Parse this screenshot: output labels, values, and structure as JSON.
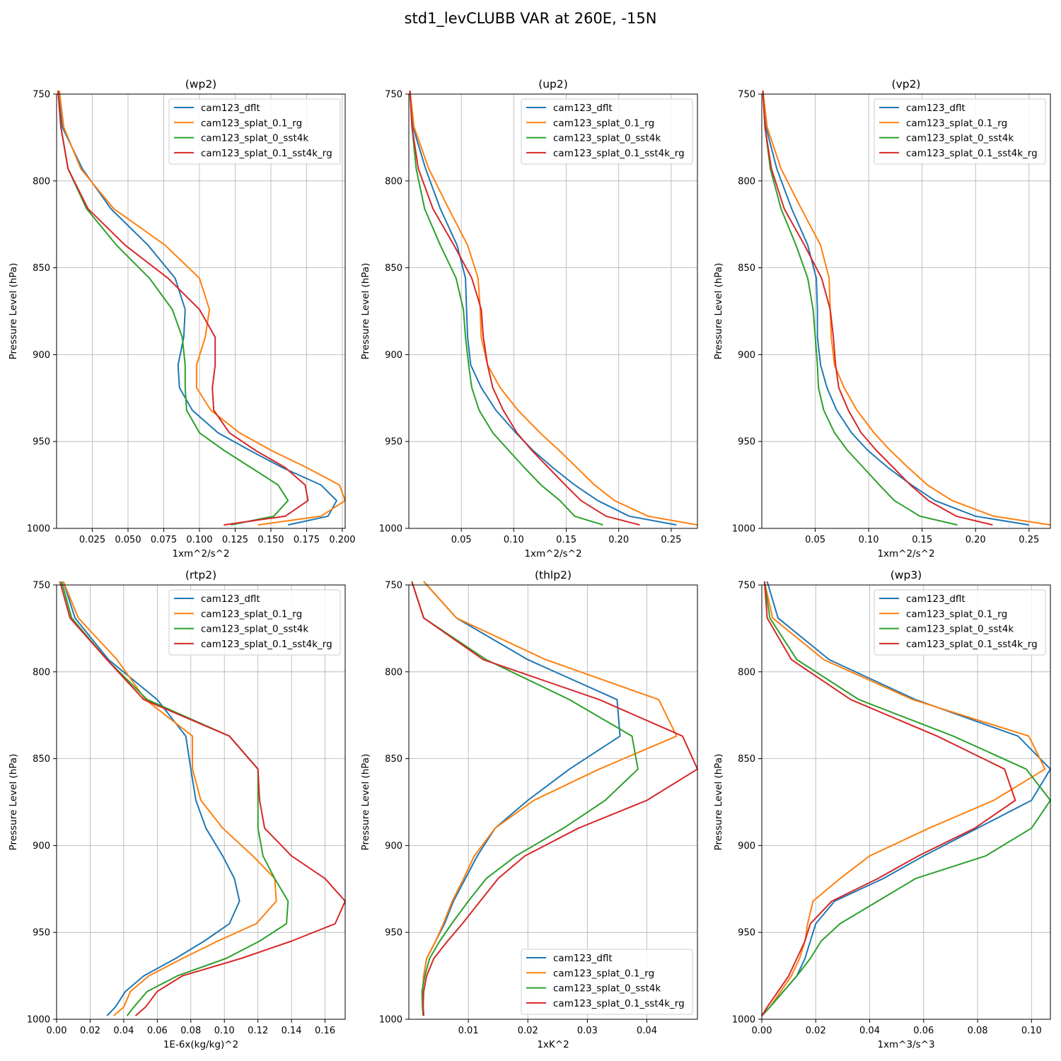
{
  "figure": {
    "title": "std1_levCLUBB VAR at 260E, -15N"
  },
  "colors": {
    "cam123_dflt": "#1f77b4",
    "cam123_splat_0.1_rg": "#ff7f0e",
    "cam123_splat_0_sst4k": "#2ca02c",
    "cam123_splat_0.1_sst4k_rg": "#d62728"
  },
  "chart_data": [
    {
      "type": "line",
      "title": "(wp2)",
      "xlabel": "1xm^2/s^2",
      "ylabel": "Pressure Level (hPa)",
      "xlim": [
        0.0,
        0.202
      ],
      "ylim": [
        1000,
        750
      ],
      "y_inverted": true,
      "xticks": [
        "0.025",
        "0.050",
        "0.075",
        "0.100",
        "0.125",
        "0.150",
        "0.175",
        "0.200"
      ],
      "yticks": [
        "750",
        "800",
        "850",
        "900",
        "950",
        "1000"
      ],
      "grid": true,
      "legend_position": "top-right",
      "pressure_levels": [
        748,
        769,
        793,
        816,
        837,
        856,
        874,
        890,
        906,
        919,
        932,
        945,
        955,
        965,
        975,
        984,
        993,
        998
      ],
      "series": [
        {
          "name": "cam123_dflt",
          "values": [
            0.001,
            0.004,
            0.018,
            0.038,
            0.064,
            0.083,
            0.09,
            0.089,
            0.085,
            0.086,
            0.095,
            0.113,
            0.135,
            0.158,
            0.185,
            0.196,
            0.19,
            0.162
          ]
        },
        {
          "name": "cam123_splat_0.1_rg",
          "values": [
            0.002,
            0.005,
            0.017,
            0.04,
            0.076,
            0.1,
            0.107,
            0.104,
            0.098,
            0.098,
            0.108,
            0.128,
            0.15,
            0.175,
            0.198,
            0.202,
            0.185,
            0.141
          ]
        },
        {
          "name": "cam123_splat_0_sst4k",
          "values": [
            0.001,
            0.003,
            0.008,
            0.021,
            0.042,
            0.065,
            0.081,
            0.088,
            0.09,
            0.09,
            0.091,
            0.1,
            0.117,
            0.136,
            0.155,
            0.162,
            0.152,
            0.122
          ]
        },
        {
          "name": "cam123_splat_0.1_sst4k_rg",
          "values": [
            0.001,
            0.003,
            0.008,
            0.022,
            0.048,
            0.078,
            0.1,
            0.111,
            0.111,
            0.109,
            0.11,
            0.121,
            0.139,
            0.16,
            0.174,
            0.176,
            0.16,
            0.117
          ]
        }
      ]
    },
    {
      "type": "line",
      "title": "(up2)",
      "xlabel": "1xm^2/s^2",
      "ylabel": "Pressure Level (hPa)",
      "xlim": [
        0.0,
        0.275
      ],
      "ylim": [
        1000,
        750
      ],
      "y_inverted": true,
      "xticks": [
        "0.05",
        "0.10",
        "0.15",
        "0.20",
        "0.25"
      ],
      "yticks": [
        "750",
        "800",
        "850",
        "900",
        "950",
        "1000"
      ],
      "grid": true,
      "legend_position": "top-right",
      "pressure_levels": [
        748,
        769,
        793,
        816,
        837,
        856,
        874,
        890,
        906,
        919,
        932,
        945,
        955,
        965,
        975,
        984,
        993,
        998
      ],
      "series": [
        {
          "name": "cam123_dflt",
          "values": [
            0.001,
            0.004,
            0.016,
            0.03,
            0.046,
            0.054,
            0.055,
            0.056,
            0.059,
            0.069,
            0.083,
            0.102,
            0.118,
            0.137,
            0.158,
            0.18,
            0.21,
            0.255
          ]
        },
        {
          "name": "cam123_splat_0.1_rg",
          "values": [
            0.001,
            0.005,
            0.019,
            0.038,
            0.056,
            0.066,
            0.068,
            0.069,
            0.075,
            0.087,
            0.104,
            0.125,
            0.143,
            0.16,
            0.177,
            0.196,
            0.228,
            0.275
          ]
        },
        {
          "name": "cam123_splat_0_sst4k",
          "values": [
            0.001,
            0.003,
            0.007,
            0.015,
            0.03,
            0.045,
            0.052,
            0.054,
            0.057,
            0.06,
            0.067,
            0.08,
            0.095,
            0.11,
            0.126,
            0.144,
            0.158,
            0.185
          ]
        },
        {
          "name": "cam123_splat_0.1_sst4k_rg",
          "values": [
            0.001,
            0.003,
            0.009,
            0.023,
            0.043,
            0.06,
            0.069,
            0.071,
            0.075,
            0.08,
            0.09,
            0.103,
            0.117,
            0.133,
            0.149,
            0.164,
            0.188,
            0.22
          ]
        }
      ]
    },
    {
      "type": "line",
      "title": "(vp2)",
      "xlabel": "1xm^2/s^2",
      "ylabel": "Pressure Level (hPa)",
      "xlim": [
        0.0,
        0.27
      ],
      "ylim": [
        1000,
        750
      ],
      "y_inverted": true,
      "xticks": [
        "0.05",
        "0.10",
        "0.15",
        "0.20",
        "0.25"
      ],
      "yticks": [
        "750",
        "800",
        "850",
        "900",
        "950",
        "1000"
      ],
      "grid": true,
      "legend_position": "top-right",
      "pressure_levels": [
        748,
        769,
        793,
        816,
        837,
        856,
        874,
        890,
        906,
        919,
        932,
        945,
        955,
        965,
        975,
        984,
        993,
        998
      ],
      "series": [
        {
          "name": "cam123_dflt",
          "values": [
            0.001,
            0.004,
            0.014,
            0.028,
            0.043,
            0.051,
            0.052,
            0.052,
            0.055,
            0.061,
            0.07,
            0.084,
            0.099,
            0.118,
            0.14,
            0.162,
            0.2,
            0.25
          ]
        },
        {
          "name": "cam123_splat_0.1_rg",
          "values": [
            0.001,
            0.005,
            0.018,
            0.037,
            0.055,
            0.063,
            0.064,
            0.065,
            0.068,
            0.077,
            0.089,
            0.105,
            0.12,
            0.137,
            0.155,
            0.178,
            0.217,
            0.27
          ]
        },
        {
          "name": "cam123_splat_0_sst4k",
          "values": [
            0.001,
            0.003,
            0.008,
            0.018,
            0.032,
            0.043,
            0.048,
            0.05,
            0.052,
            0.053,
            0.058,
            0.068,
            0.08,
            0.095,
            0.11,
            0.124,
            0.148,
            0.183
          ]
        },
        {
          "name": "cam123_splat_0.1_sst4k_rg",
          "values": [
            0.001,
            0.003,
            0.009,
            0.021,
            0.04,
            0.056,
            0.064,
            0.067,
            0.069,
            0.072,
            0.081,
            0.093,
            0.107,
            0.123,
            0.139,
            0.156,
            0.182,
            0.216
          ]
        }
      ]
    },
    {
      "type": "line",
      "title": "(rtp2)",
      "xlabel": "1E-6x(kg/kg)^2",
      "ylabel": "Pressure Level (hPa)",
      "xlim": [
        0.0,
        0.172
      ],
      "ylim": [
        1000,
        750
      ],
      "y_inverted": true,
      "xticks": [
        "0.00",
        "0.02",
        "0.04",
        "0.06",
        "0.08",
        "0.10",
        "0.12",
        "0.14",
        "0.16"
      ],
      "yticks": [
        "750",
        "800",
        "850",
        "900",
        "950",
        "1000"
      ],
      "grid": true,
      "legend_position": "top-right",
      "pressure_levels": [
        748,
        769,
        793,
        816,
        837,
        856,
        874,
        890,
        906,
        919,
        932,
        945,
        955,
        965,
        975,
        984,
        993,
        998
      ],
      "series": [
        {
          "name": "cam123_dflt",
          "values": [
            0.004,
            0.011,
            0.031,
            0.06,
            0.077,
            0.08,
            0.083,
            0.089,
            0.099,
            0.106,
            0.109,
            0.103,
            0.088,
            0.071,
            0.052,
            0.041,
            0.035,
            0.03
          ]
        },
        {
          "name": "cam123_splat_0.1_rg",
          "values": [
            0.004,
            0.013,
            0.036,
            0.053,
            0.081,
            0.081,
            0.086,
            0.099,
            0.117,
            0.13,
            0.131,
            0.119,
            0.096,
            0.075,
            0.055,
            0.044,
            0.04,
            0.034
          ]
        },
        {
          "name": "cam123_splat_0_sst4k",
          "values": [
            0.003,
            0.009,
            0.03,
            0.054,
            0.103,
            0.12,
            0.12,
            0.12,
            0.123,
            0.13,
            0.138,
            0.137,
            0.121,
            0.101,
            0.072,
            0.054,
            0.046,
            0.042
          ]
        },
        {
          "name": "cam123_splat_0.1_sst4k_rg",
          "values": [
            0.002,
            0.008,
            0.03,
            0.052,
            0.103,
            0.12,
            0.121,
            0.124,
            0.14,
            0.16,
            0.172,
            0.166,
            0.14,
            0.11,
            0.075,
            0.06,
            0.053,
            0.047
          ]
        }
      ]
    },
    {
      "type": "line",
      "title": "(thlp2)",
      "xlabel": "1xK^2",
      "ylabel": "Pressure Level (hPa)",
      "xlim": [
        0.0,
        0.0485
      ],
      "ylim": [
        1000,
        750
      ],
      "y_inverted": true,
      "xticks": [
        "0.01",
        "0.02",
        "0.03",
        "0.04"
      ],
      "yticks": [
        "750",
        "800",
        "850",
        "900",
        "950",
        "1000"
      ],
      "grid": true,
      "legend_position": "bottom-right",
      "pressure_levels": [
        748,
        769,
        793,
        816,
        837,
        856,
        874,
        890,
        906,
        919,
        932,
        945,
        955,
        965,
        975,
        984,
        993,
        998
      ],
      "series": [
        {
          "name": "cam123_dflt",
          "values": [
            0.0025,
            0.008,
            0.02,
            0.035,
            0.0355,
            0.027,
            0.02,
            0.0145,
            0.0115,
            0.0095,
            0.0075,
            0.006,
            0.0045,
            0.003,
            0.0025,
            0.0023,
            0.0024,
            0.0025
          ]
        },
        {
          "name": "cam123_splat_0.1_rg",
          "values": [
            0.0025,
            0.008,
            0.023,
            0.042,
            0.045,
            0.032,
            0.021,
            0.0145,
            0.011,
            0.0092,
            0.0073,
            0.0058,
            0.0045,
            0.003,
            0.0025,
            0.0023,
            0.0024,
            0.0025
          ]
        },
        {
          "name": "cam123_splat_0_sst4k",
          "values": [
            0.0005,
            0.0025,
            0.013,
            0.027,
            0.0375,
            0.0385,
            0.033,
            0.026,
            0.018,
            0.013,
            0.01,
            0.0072,
            0.0052,
            0.0035,
            0.0027,
            0.0022,
            0.0023,
            0.0024
          ]
        },
        {
          "name": "cam123_splat_0.1_sst4k_rg",
          "values": [
            0.0005,
            0.0025,
            0.0125,
            0.032,
            0.046,
            0.0485,
            0.04,
            0.0285,
            0.0195,
            0.015,
            0.012,
            0.009,
            0.0065,
            0.0042,
            0.003,
            0.0025,
            0.0024,
            0.0025
          ]
        }
      ]
    },
    {
      "type": "line",
      "title": "(wp3)",
      "xlabel": "1xm^3/s^3",
      "ylabel": "Pressure Level (hPa)",
      "xlim": [
        0.0,
        0.107
      ],
      "ylim": [
        1000,
        750
      ],
      "y_inverted": true,
      "xticks": [
        "0.00",
        "0.02",
        "0.04",
        "0.06",
        "0.08",
        "0.10"
      ],
      "yticks": [
        "750",
        "800",
        "850",
        "900",
        "950",
        "1000"
      ],
      "grid": true,
      "legend_position": "top-right",
      "pressure_levels": [
        748,
        769,
        793,
        816,
        837,
        856,
        874,
        890,
        906,
        919,
        932,
        945,
        955,
        965,
        975,
        984,
        993,
        998
      ],
      "series": [
        {
          "name": "cam123_dflt",
          "values": [
            0.002,
            0.006,
            0.025,
            0.057,
            0.095,
            0.107,
            0.1,
            0.08,
            0.06,
            0.045,
            0.027,
            0.02,
            0.018,
            0.016,
            0.013,
            0.008,
            0.003,
            0.0
          ]
        },
        {
          "name": "cam123_splat_0.1_rg",
          "values": [
            0.001,
            0.004,
            0.023,
            0.056,
            0.099,
            0.105,
            0.086,
            0.062,
            0.04,
            0.029,
            0.019,
            0.017,
            0.016,
            0.014,
            0.011,
            0.007,
            0.003,
            0.0
          ]
        },
        {
          "name": "cam123_splat_0_sst4k",
          "values": [
            0.001,
            0.003,
            0.013,
            0.036,
            0.071,
            0.098,
            0.107,
            0.1,
            0.083,
            0.057,
            0.043,
            0.029,
            0.022,
            0.018,
            0.013,
            0.008,
            0.003,
            0.0
          ]
        },
        {
          "name": "cam123_splat_0.1_sst4k_rg",
          "values": [
            0.001,
            0.002,
            0.011,
            0.033,
            0.065,
            0.09,
            0.094,
            0.079,
            0.058,
            0.043,
            0.026,
            0.018,
            0.016,
            0.013,
            0.01,
            0.006,
            0.002,
            0.0
          ]
        }
      ]
    }
  ]
}
